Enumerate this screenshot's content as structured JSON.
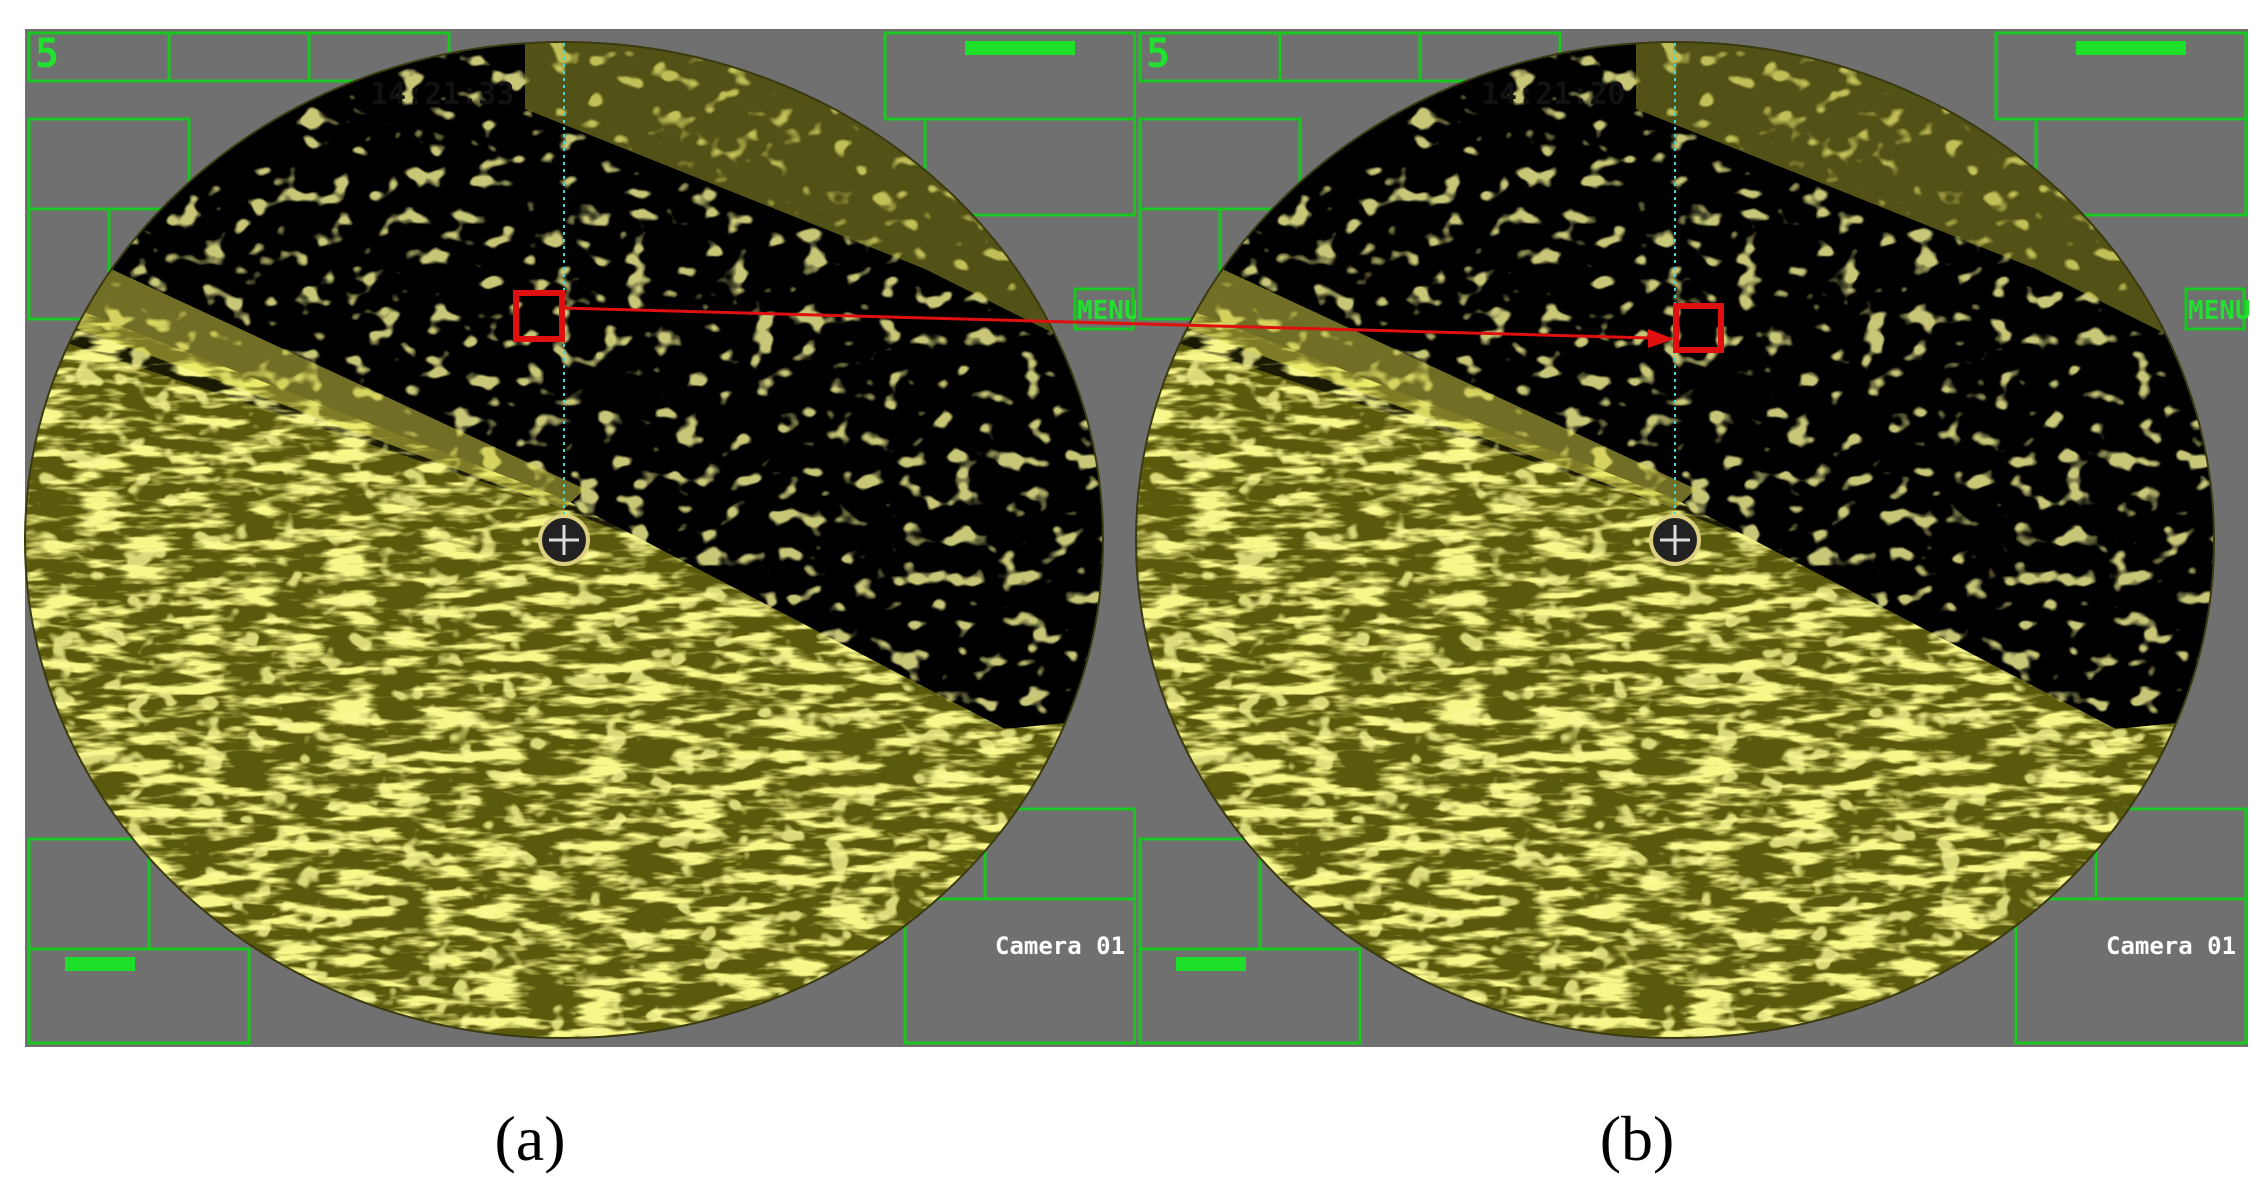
{
  "panels": [
    {
      "label": "(a)",
      "time": "14:21:33",
      "screen_id": "5",
      "menu": "MENU",
      "camera": "Camera 01"
    },
    {
      "label": "(b)",
      "time": "14:21:20",
      "screen_id": "5",
      "menu": "MENU",
      "camera": "Camera 01"
    }
  ]
}
